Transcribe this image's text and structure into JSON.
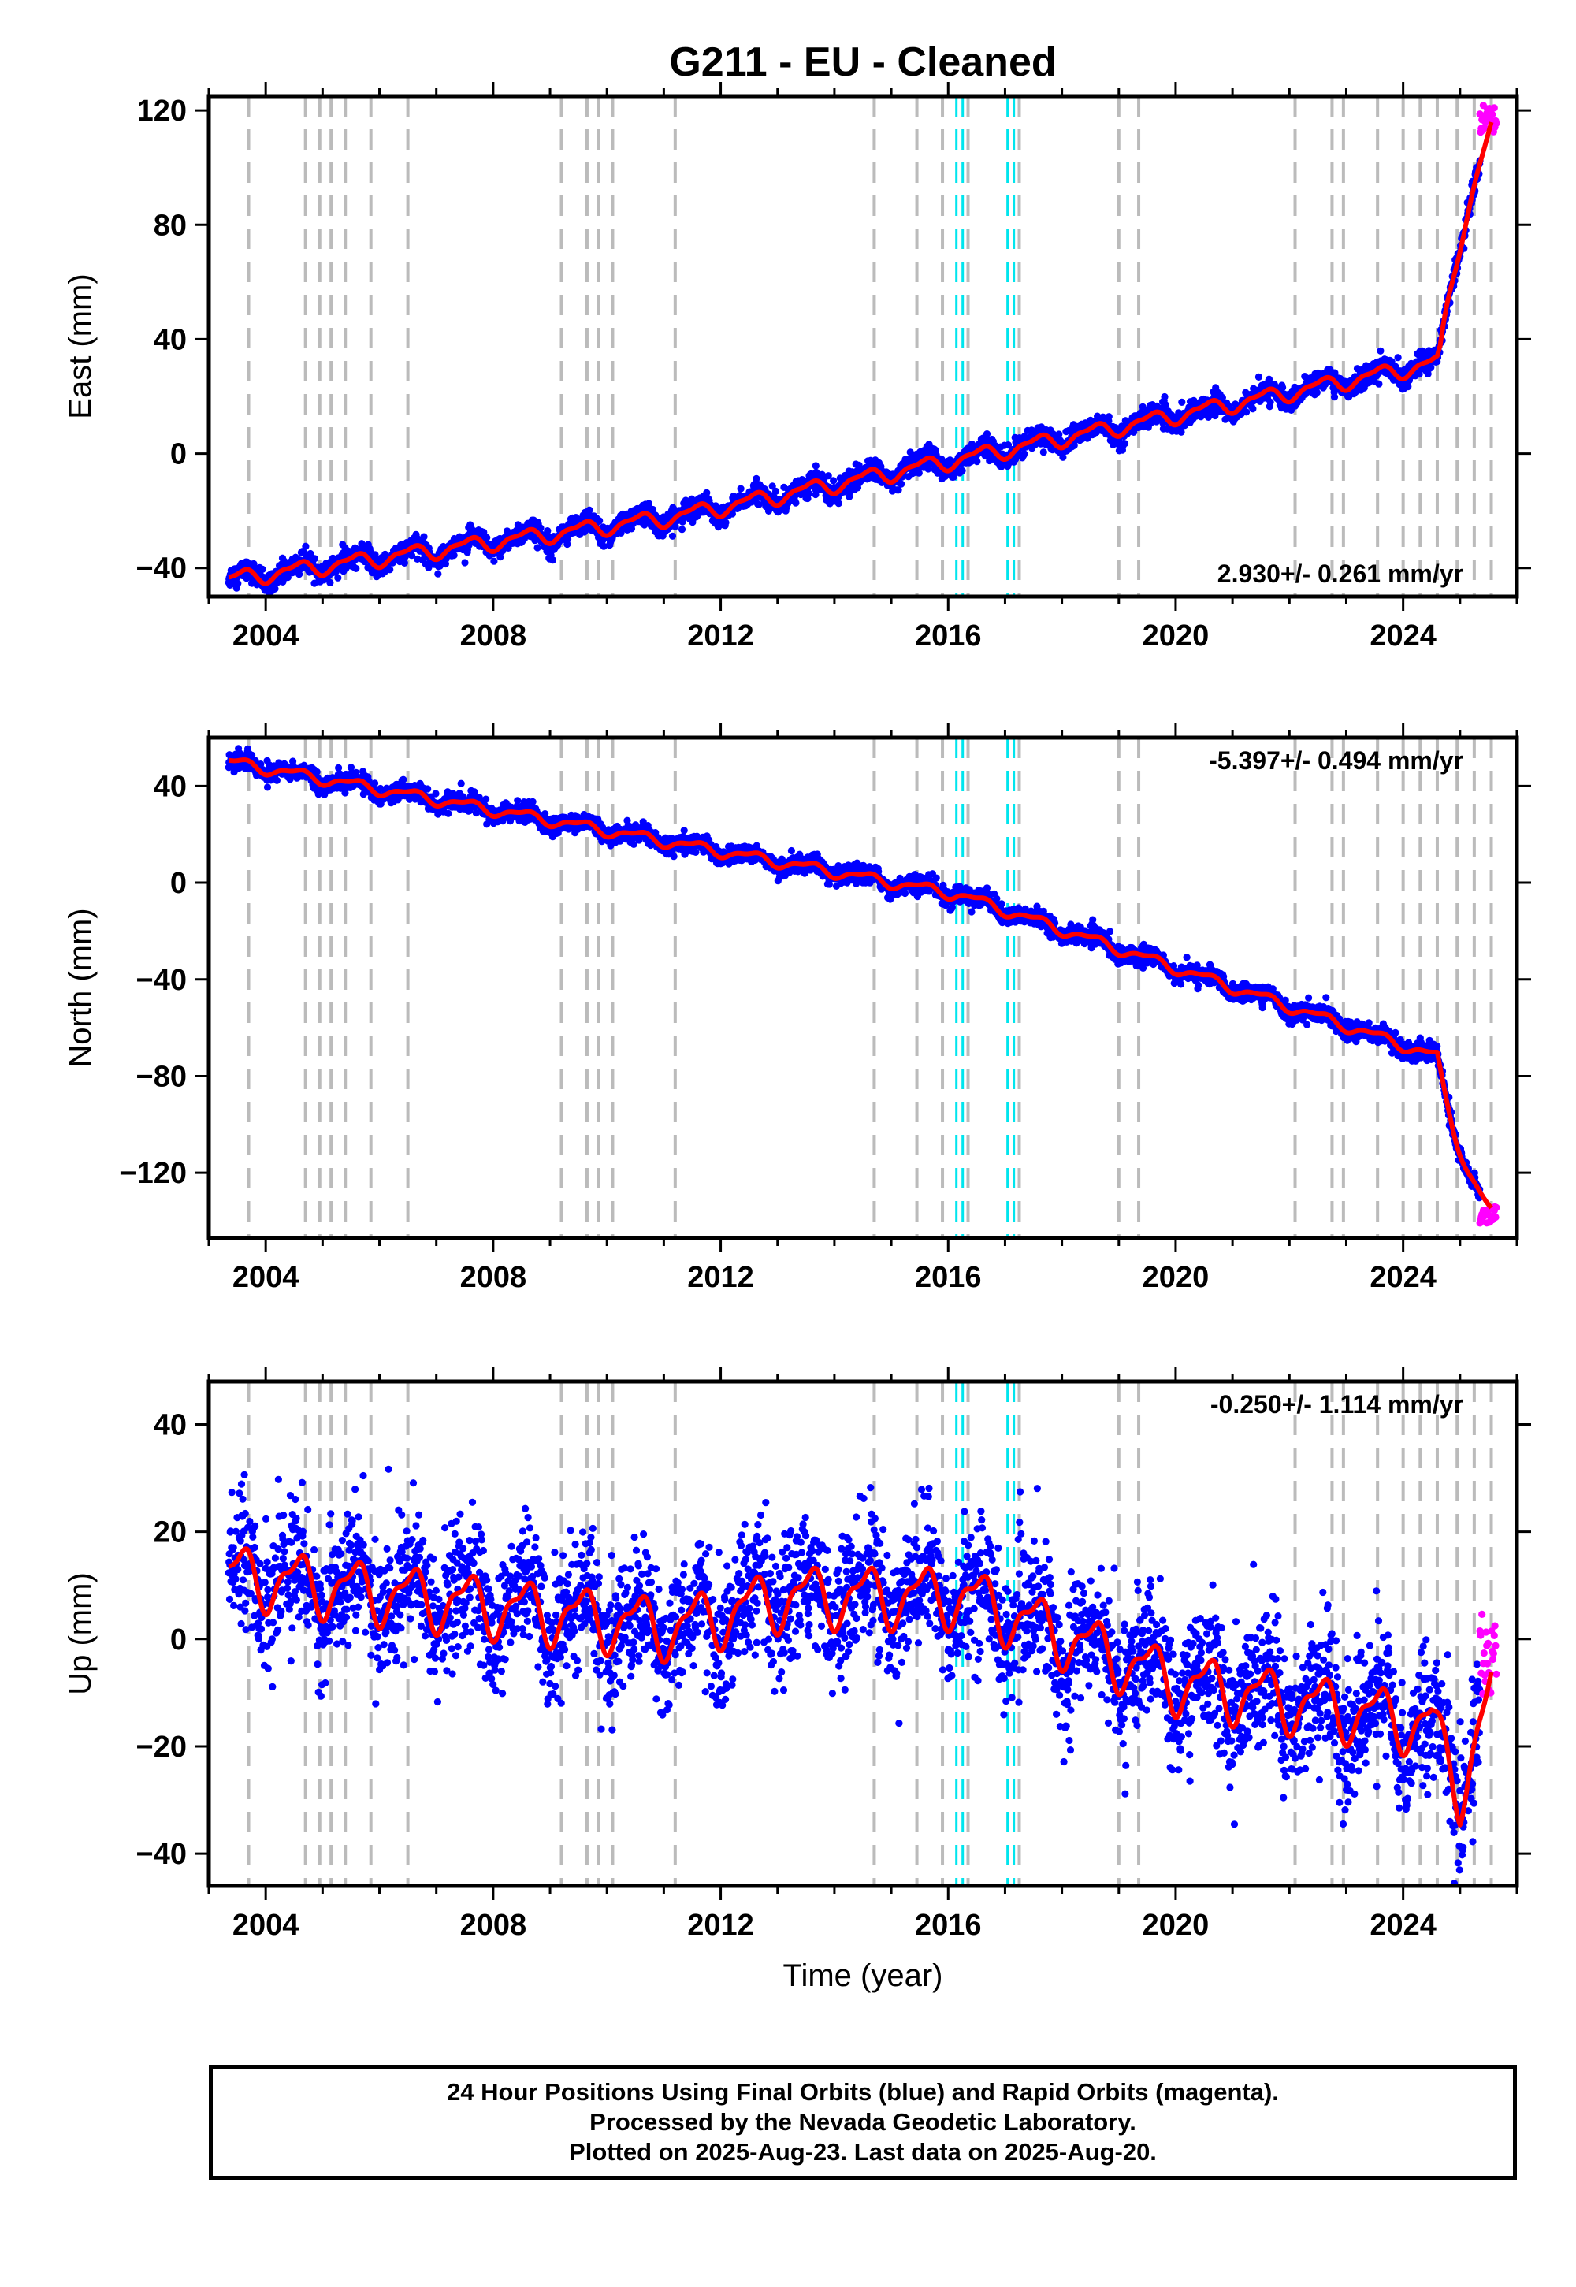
{
  "title": "G211  - EU - Cleaned",
  "colors": {
    "final": "#0000ff",
    "rapid": "#ff00ff",
    "model": "#ff0000",
    "grey_event": "#bbbbbb",
    "cyan_event": "#00e5ee"
  },
  "events": {
    "grey": [
      2003.7,
      2004.7,
      2004.95,
      2005.15,
      2005.4,
      2005.85,
      2006.5,
      2009.2,
      2009.65,
      2009.85,
      2010.1,
      2011.2,
      2014.7,
      2015.45,
      2015.9,
      2016.35,
      2017.25,
      2019.0,
      2019.35,
      2022.1,
      2022.75,
      2022.95,
      2023.55,
      2024.0,
      2024.3,
      2024.6,
      2024.95,
      2025.25,
      2025.55
    ],
    "cyan": [
      2016.2,
      2017.1
    ]
  },
  "chart_data": [
    {
      "type": "scatter",
      "name": "east",
      "ylabel": "East (mm)",
      "xlabel": "",
      "xlim": [
        2003.0,
        2026.0
      ],
      "ylim": [
        -50,
        125
      ],
      "x_ticks": [
        "2004",
        "2008",
        "2012",
        "2016",
        "2020",
        "2024"
      ],
      "y_ticks": [
        "−40",
        "0",
        "40",
        "80",
        "120"
      ],
      "rate_label": "2.930+/- 0.261 mm/yr",
      "rate_position": "bottom-right",
      "model": {
        "rate": 2.93,
        "anchors": [
          [
            2003.35,
            -44
          ],
          [
            2011.2,
            -22
          ],
          [
            2024.65,
            32
          ],
          [
            2025.55,
            114
          ]
        ],
        "offsets": [
          [
            2011.2,
            13
          ],
          [
            2024.6,
            52
          ]
        ],
        "seasonal_amplitude": 2.5,
        "postseismic": {
          "start": 2024.6,
          "amplitude": 30,
          "tau": 0.3
        }
      },
      "noise": 1.8,
      "rapid_x_range": [
        2025.35,
        2025.64
      ],
      "rapid_y_range": [
        112,
        122
      ]
    },
    {
      "type": "scatter",
      "name": "north",
      "ylabel": "North (mm)",
      "xlabel": "",
      "xlim": [
        2003.0,
        2026.0
      ],
      "ylim": [
        -147,
        60
      ],
      "x_ticks": [
        "2004",
        "2008",
        "2012",
        "2016",
        "2020",
        "2024"
      ],
      "y_ticks": [
        "−120",
        "−80",
        "−40",
        "0",
        "40"
      ],
      "rate_label": "-5.397+/- 0.494 mm/yr",
      "rate_position": "top-right",
      "model": {
        "rate": -5.397,
        "anchors": [
          [
            2003.35,
            50
          ],
          [
            2016.2,
            -5
          ],
          [
            2024.6,
            -72
          ],
          [
            2025.55,
            -136
          ]
        ],
        "offsets": [
          [
            2016.2,
            -15
          ],
          [
            2024.6,
            -20
          ]
        ],
        "seasonal_amplitude": 2.0,
        "postseismic": {
          "start": 2024.6,
          "amplitude": -45,
          "tau": 0.4
        }
      },
      "noise": 1.8,
      "rapid_x_range": [
        2025.35,
        2025.64
      ],
      "rapid_y_range": [
        -142,
        -134
      ]
    },
    {
      "type": "scatter",
      "name": "up",
      "ylabel": "Up (mm)",
      "xlabel": "Time (year)",
      "xlim": [
        2003.0,
        2026.0
      ],
      "ylim": [
        -46,
        48
      ],
      "x_ticks": [
        "2004",
        "2008",
        "2012",
        "2016",
        "2020",
        "2024"
      ],
      "y_ticks": [
        "−40",
        "−20",
        "0",
        "20",
        "40"
      ],
      "rate_label": "-0.250+/- 1.114 mm/yr",
      "rate_position": "top-right",
      "model": {
        "rate": -0.25,
        "anchors": [
          [
            2003.35,
            12
          ],
          [
            2011.2,
            2
          ],
          [
            2013.2,
            8
          ],
          [
            2016.3,
            8
          ],
          [
            2020.0,
            -8
          ],
          [
            2024.5,
            -16
          ],
          [
            2025.0,
            -28
          ],
          [
            2025.55,
            -10
          ]
        ],
        "offsets": [
          [
            2011.2,
            -10
          ],
          [
            2024.6,
            -12
          ]
        ],
        "seasonal_amplitude": 5.0
      },
      "noise": 6.0,
      "rapid_x_range": [
        2025.35,
        2025.64
      ],
      "rapid_y_range": [
        -14,
        5
      ]
    }
  ],
  "caption": {
    "line1": "24 Hour Positions Using Final Orbits (blue) and Rapid Orbits (magenta).",
    "line2": "Processed by the Nevada Geodetic Laboratory.",
    "line3": "Plotted on 2025-Aug-23. Last data on 2025-Aug-20."
  }
}
